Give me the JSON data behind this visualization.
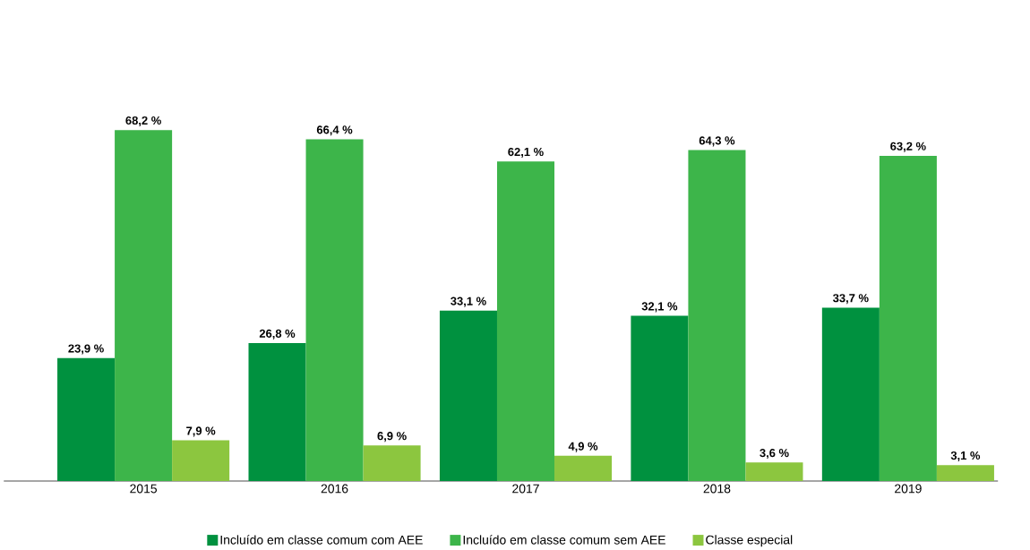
{
  "chart_data": {
    "type": "bar",
    "categories": [
      "2015",
      "2016",
      "2017",
      "2018",
      "2019"
    ],
    "series": [
      {
        "name": "Incluído em classe comum com AEE",
        "color": "#00913f",
        "values": [
          23.9,
          26.8,
          33.1,
          32.1,
          33.7
        ],
        "value_labels": [
          "23,9 %",
          "26,8 %",
          "33,1 %",
          "32,1 %",
          "33,7 %"
        ]
      },
      {
        "name": "Incluído em classe comum sem AEE",
        "color": "#3db54a",
        "values": [
          68.2,
          66.4,
          62.1,
          64.3,
          63.2
        ],
        "value_labels": [
          "68,2 %",
          "66,4 %",
          "62,1 %",
          "64,3 %",
          "63,2 %"
        ]
      },
      {
        "name": "Classe especial",
        "color": "#8cc63f",
        "values": [
          7.9,
          6.9,
          4.9,
          3.6,
          3.1
        ],
        "value_labels": [
          "7,9 %",
          "6,9 %",
          "4,9 %",
          "3,6 %",
          "3,1 %"
        ]
      }
    ],
    "legend": "bottom"
  }
}
